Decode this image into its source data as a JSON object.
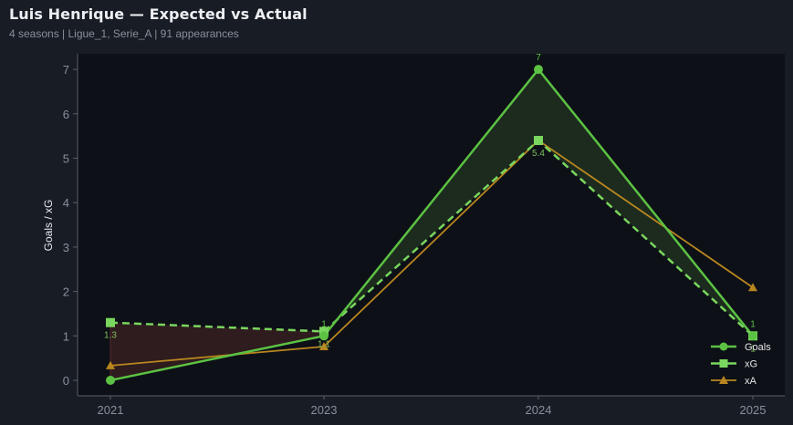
{
  "header": {
    "title": "Luis Henrique — Expected vs Actual",
    "subtitle": "4 seasons | Ligue_1, Serie_A | 91 appearances"
  },
  "colors": {
    "page_bg": "#181c24",
    "plot_bg": "#0d1017",
    "goals": "#5cc243",
    "xg": "#7ad65e",
    "xa": "#b8861f",
    "fill_over": "#1c2b1e",
    "fill_under": "#2e1c1e",
    "axis": "#5a5f68"
  },
  "chart_data": {
    "type": "line",
    "title": "Luis Henrique — Expected vs Actual",
    "subtitle": "4 seasons | Ligue_1, Serie_A | 91 appearances",
    "xlabel": "",
    "ylabel": "Goals / xG",
    "categories": [
      "2021",
      "2023",
      "2024",
      "2025"
    ],
    "ylim": [
      -0.35,
      7.35
    ],
    "yticks": [
      0,
      1,
      2,
      3,
      4,
      5,
      6,
      7
    ],
    "grid": false,
    "legend_position": "lower right",
    "series": [
      {
        "name": "Goals",
        "values": [
          0,
          1,
          7,
          1
        ],
        "style": "solid",
        "marker": "circle"
      },
      {
        "name": "xG",
        "values": [
          1.3,
          1.1,
          5.4,
          1.0
        ],
        "style": "dashed",
        "marker": "square"
      },
      {
        "name": "xA",
        "values": [
          0.33,
          0.76,
          5.4,
          2.09
        ],
        "style": "solid",
        "marker": "triangle"
      }
    ],
    "annotations": [
      {
        "x": "2021",
        "text": "1.3",
        "series": "xG"
      },
      {
        "x": "2023",
        "text": "1",
        "series": "Goals"
      },
      {
        "x": "2023",
        "text": "1.1",
        "series": "xG"
      },
      {
        "x": "2024",
        "text": "7",
        "series": "Goals"
      },
      {
        "x": "2024",
        "text": "5.4",
        "series": "xG"
      },
      {
        "x": "2025",
        "text": "1",
        "series": "Goals"
      },
      {
        "x": "2025",
        "text": "1",
        "series": "xG"
      }
    ],
    "fill_between": {
      "series": [
        "Goals",
        "xG"
      ],
      "over_color": "green",
      "under_color": "red"
    }
  }
}
